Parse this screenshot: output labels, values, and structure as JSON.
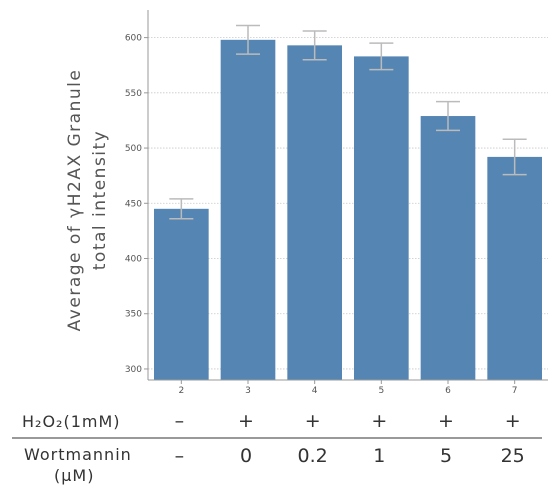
{
  "chart_data": {
    "type": "bar",
    "categories": [
      "2",
      "3",
      "4",
      "5",
      "6",
      "7"
    ],
    "values": [
      445,
      598,
      593,
      583,
      529,
      492
    ],
    "errors": [
      9,
      13,
      13,
      12,
      13,
      16
    ],
    "ylabel_lines": [
      "Average of γH2AX Granule",
      "total intensity"
    ],
    "yticks": [
      300,
      350,
      400,
      450,
      500,
      550,
      600
    ],
    "ytick_labels": [
      "300",
      "350",
      "400",
      "450",
      "500",
      "550",
      "600"
    ],
    "ylim": [
      290,
      625
    ],
    "grid": true,
    "bar_color": "#5586b3",
    "error_color": "#bbbbbb"
  },
  "table": {
    "rows": [
      {
        "label_lines": [
          "H₂O₂(1mM)"
        ],
        "values": [
          "–",
          "+",
          "+",
          "+",
          "+",
          "+"
        ]
      },
      {
        "label_lines": [
          "Wortmannin",
          "(μM)"
        ],
        "values": [
          "–",
          "0",
          "0.2",
          "1",
          "5",
          "25"
        ]
      }
    ]
  }
}
